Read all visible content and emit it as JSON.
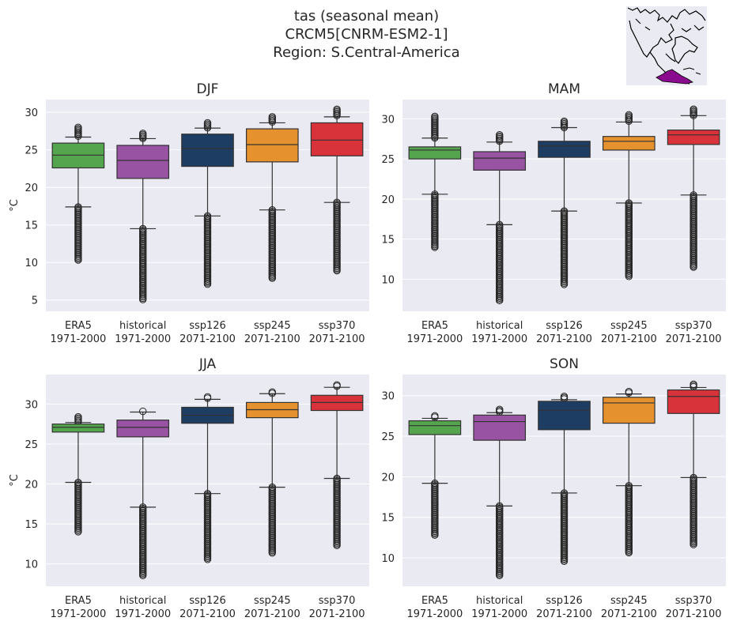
{
  "figure": {
    "title_lines": [
      "tas (seasonal mean)",
      "CRCM5[CNRM-ESM2-1]",
      "Region: S.Central-America"
    ]
  },
  "colors": {
    "background": "#eaeaf2",
    "grid": "#ffffff",
    "whisker": "#333333",
    "flier": "#262626",
    "series": [
      "#55a44e",
      "#9853a3",
      "#1d3d63",
      "#e5922e",
      "#d8323a"
    ],
    "map_highlight": "#8b0b8f"
  },
  "chart_data": [
    {
      "type": "box",
      "title": "DJF",
      "ylabel": "°C",
      "ylim": [
        3.5,
        31.7
      ],
      "yticks": [
        5,
        10,
        15,
        20,
        25,
        30
      ],
      "categories": [
        "ERA5\n1971-2000",
        "historical\n1971-2000",
        "ssp126\n2071-2100",
        "ssp245\n2071-2100",
        "ssp370\n2071-2100"
      ],
      "boxes": [
        {
          "q1": 22.6,
          "median": 24.3,
          "q3": 25.9,
          "whislo": 17.4,
          "whishi": 26.7,
          "flier_lo": [
            10.3,
            17.4
          ],
          "flier_hi": [
            26.7,
            28.0
          ]
        },
        {
          "q1": 21.2,
          "median": 23.6,
          "q3": 25.6,
          "whislo": 14.5,
          "whishi": 26.5,
          "flier_lo": [
            5.0,
            14.5
          ],
          "flier_hi": [
            26.5,
            27.2
          ]
        },
        {
          "q1": 22.8,
          "median": 25.2,
          "q3": 27.1,
          "whislo": 16.2,
          "whishi": 27.9,
          "flier_lo": [
            7.0,
            16.2
          ],
          "flier_hi": [
            27.9,
            28.6
          ]
        },
        {
          "q1": 23.4,
          "median": 25.7,
          "q3": 27.8,
          "whislo": 17.0,
          "whishi": 28.6,
          "flier_lo": [
            7.8,
            17.0
          ],
          "flier_hi": [
            28.6,
            29.4
          ]
        },
        {
          "q1": 24.2,
          "median": 26.3,
          "q3": 28.6,
          "whislo": 18.0,
          "whishi": 29.4,
          "flier_lo": [
            8.9,
            18.0
          ],
          "flier_hi": [
            29.4,
            30.4
          ]
        }
      ]
    },
    {
      "type": "box",
      "title": "MAM",
      "ylabel": "",
      "ylim": [
        6.0,
        32.4
      ],
      "yticks": [
        10,
        15,
        20,
        25,
        30
      ],
      "categories": [
        "ERA5\n1971-2000",
        "historical\n1971-2000",
        "ssp126\n2071-2100",
        "ssp245\n2071-2100",
        "ssp370\n2071-2100"
      ],
      "boxes": [
        {
          "q1": 25.0,
          "median": 26.1,
          "q3": 26.5,
          "whislo": 20.6,
          "whishi": 27.6,
          "flier_lo": [
            13.9,
            20.6
          ],
          "flier_hi": [
            27.6,
            30.3
          ]
        },
        {
          "q1": 23.6,
          "median": 25.1,
          "q3": 25.9,
          "whislo": 16.8,
          "whishi": 27.1,
          "flier_lo": [
            7.2,
            16.8
          ],
          "flier_hi": [
            27.1,
            28.0
          ]
        },
        {
          "q1": 25.2,
          "median": 26.6,
          "q3": 27.2,
          "whislo": 18.5,
          "whishi": 28.9,
          "flier_lo": [
            9.3,
            18.5
          ],
          "flier_hi": [
            28.9,
            29.7
          ]
        },
        {
          "q1": 26.1,
          "median": 27.2,
          "q3": 27.8,
          "whislo": 19.5,
          "whishi": 29.6,
          "flier_lo": [
            10.3,
            19.5
          ],
          "flier_hi": [
            29.6,
            30.5
          ]
        },
        {
          "q1": 26.8,
          "median": 28.0,
          "q3": 28.6,
          "whislo": 20.5,
          "whishi": 30.4,
          "flier_lo": [
            11.5,
            20.5
          ],
          "flier_hi": [
            30.4,
            31.2
          ]
        }
      ]
    },
    {
      "type": "box",
      "title": "JJA",
      "ylabel": "°C",
      "ylim": [
        7.2,
        33.7
      ],
      "yticks": [
        10,
        15,
        20,
        25,
        30
      ],
      "categories": [
        "ERA5\n1971-2000",
        "historical\n1971-2000",
        "ssp126\n2071-2100",
        "ssp245\n2071-2100",
        "ssp370\n2071-2100"
      ],
      "boxes": [
        {
          "q1": 26.5,
          "median": 27.1,
          "q3": 27.5,
          "whislo": 20.2,
          "whishi": 27.7,
          "flier_lo": [
            13.9,
            20.2
          ],
          "flier_hi": [
            27.7,
            28.4
          ]
        },
        {
          "q1": 25.9,
          "median": 27.1,
          "q3": 28.0,
          "whislo": 17.1,
          "whishi": 29.0,
          "flier_lo": [
            8.4,
            17.1
          ],
          "flier_hi": [
            29.0,
            29.1
          ]
        },
        {
          "q1": 27.6,
          "median": 28.6,
          "q3": 29.6,
          "whislo": 18.8,
          "whishi": 30.6,
          "flier_lo": [
            10.5,
            18.8
          ],
          "flier_hi": [
            30.6,
            30.9
          ]
        },
        {
          "q1": 28.3,
          "median": 29.3,
          "q3": 30.2,
          "whislo": 19.6,
          "whishi": 31.3,
          "flier_lo": [
            11.3,
            19.6
          ],
          "flier_hi": [
            31.3,
            31.5
          ]
        },
        {
          "q1": 29.2,
          "median": 30.2,
          "q3": 31.1,
          "whislo": 20.7,
          "whishi": 32.1,
          "flier_lo": [
            12.3,
            20.7
          ],
          "flier_hi": [
            32.1,
            32.4
          ]
        }
      ]
    },
    {
      "type": "box",
      "title": "SON",
      "ylabel": "",
      "ylim": [
        6.5,
        32.6
      ],
      "yticks": [
        10,
        15,
        20,
        25,
        30
      ],
      "categories": [
        "ERA5\n1971-2000",
        "historical\n1971-2000",
        "ssp126\n2071-2100",
        "ssp245\n2071-2100",
        "ssp370\n2071-2100"
      ],
      "boxes": [
        {
          "q1": 25.2,
          "median": 26.3,
          "q3": 26.9,
          "whislo": 19.2,
          "whishi": 27.2,
          "flier_lo": [
            12.8,
            19.2
          ],
          "flier_hi": [
            27.2,
            27.5
          ]
        },
        {
          "q1": 24.5,
          "median": 26.8,
          "q3": 27.6,
          "whislo": 16.4,
          "whishi": 27.9,
          "flier_lo": [
            7.8,
            16.4
          ],
          "flier_hi": [
            27.9,
            28.3
          ]
        },
        {
          "q1": 25.8,
          "median": 28.2,
          "q3": 29.3,
          "whislo": 18.0,
          "whishi": 29.5,
          "flier_lo": [
            9.5,
            18.0
          ],
          "flier_hi": [
            29.5,
            29.9
          ]
        },
        {
          "q1": 26.6,
          "median": 29.1,
          "q3": 29.8,
          "whislo": 18.9,
          "whishi": 30.2,
          "flier_lo": [
            10.5,
            18.9
          ],
          "flier_hi": [
            30.2,
            30.5
          ]
        },
        {
          "q1": 27.8,
          "median": 29.9,
          "q3": 30.7,
          "whislo": 19.9,
          "whishi": 31.0,
          "flier_lo": [
            11.6,
            19.9
          ],
          "flier_hi": [
            31.0,
            31.4
          ]
        }
      ]
    }
  ]
}
